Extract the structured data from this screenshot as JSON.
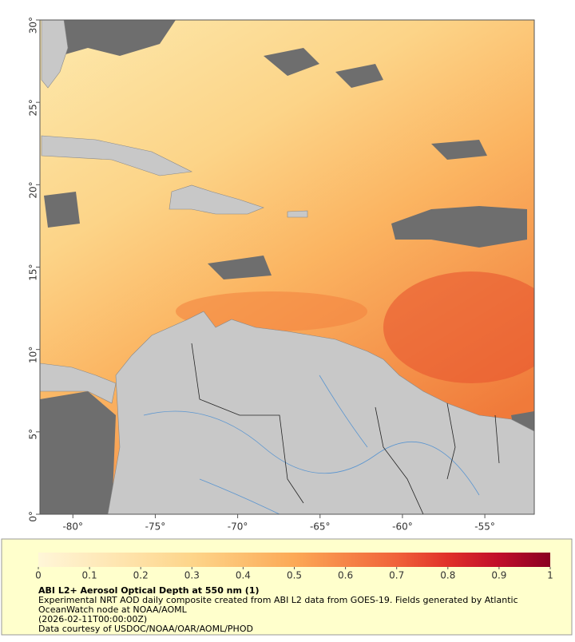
{
  "map": {
    "lonlim": [
      -82,
      -52
    ],
    "latlim": [
      0,
      30
    ],
    "lon_ticks": [
      {
        "value": -80,
        "label": "-80°"
      },
      {
        "value": -75,
        "label": "-75°"
      },
      {
        "value": -70,
        "label": "-70°"
      },
      {
        "value": -65,
        "label": "-65°"
      },
      {
        "value": -60,
        "label": "-60°"
      },
      {
        "value": -55,
        "label": "-55°"
      }
    ],
    "lat_ticks": [
      {
        "value": 0,
        "label": "0°"
      },
      {
        "value": 5,
        "label": "5°"
      },
      {
        "value": 10,
        "label": "10°"
      },
      {
        "value": 15,
        "label": "15°"
      },
      {
        "value": 20,
        "label": "20°"
      },
      {
        "value": 25,
        "label": "25°"
      },
      {
        "value": 30,
        "label": "30°"
      }
    ]
  },
  "colorbar": {
    "lim": [
      0,
      1
    ],
    "ticks": [
      0,
      0.1,
      0.2,
      0.3,
      0.4,
      0.5,
      0.6,
      0.7,
      0.8,
      0.9,
      1
    ]
  },
  "legend": {
    "title": "ABI L2+ Aerosol Optical Depth at 550 nm (1)",
    "lines": [
      "Experimental NRT AOD daily composite created from ABI L2 data from GOES-19. Fields generated by Atlantic",
      "OceanWatch node at NOAA/AOML",
      "(2026-02-11T00:00:00Z)",
      "Data courtesy of USDOC/NOAA/OAR/AOML/PHOD"
    ]
  }
}
